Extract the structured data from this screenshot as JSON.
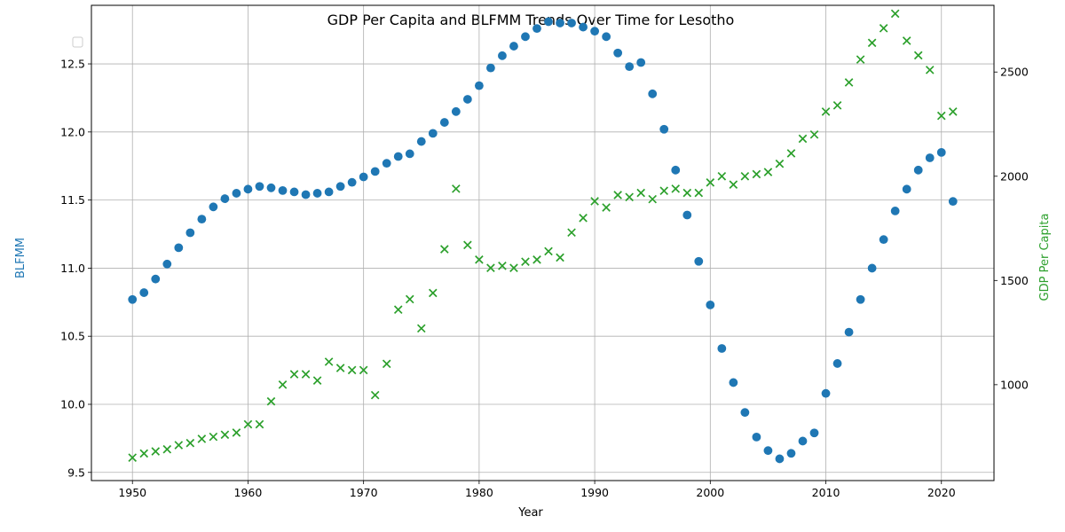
{
  "chart_data": {
    "type": "scatter",
    "title": "GDP Per Capita and BLFMM Trends Over Time for Lesotho",
    "xlabel": "Year",
    "ylabel_left": "BLFMM",
    "ylabel_right": "GDP Per Capita",
    "xlim": [
      1946.45,
      2024.55
    ],
    "ylim_left": [
      9.44,
      12.93
    ],
    "ylim_right": [
      540,
      2820
    ],
    "x_ticks": [
      1950,
      1960,
      1970,
      1980,
      1990,
      2000,
      2010,
      2020
    ],
    "y_ticks_left": [
      9.5,
      10.0,
      10.5,
      11.0,
      11.5,
      12.0,
      12.5
    ],
    "y_ticks_left_labels": [
      "9.5",
      "10.0",
      "10.5",
      "11.0",
      "11.5",
      "12.0",
      "12.5"
    ],
    "y_ticks_right": [
      1000,
      1500,
      2000,
      2500
    ],
    "grid": true,
    "legend": "top-left (empty)",
    "colors": {
      "left_axis": "#1f77b4",
      "right_axis": "#2ca02c"
    },
    "x": [
      1950,
      1951,
      1952,
      1953,
      1954,
      1955,
      1956,
      1957,
      1958,
      1959,
      1960,
      1961,
      1962,
      1963,
      1964,
      1965,
      1966,
      1967,
      1968,
      1969,
      1970,
      1971,
      1972,
      1973,
      1974,
      1975,
      1976,
      1977,
      1978,
      1979,
      1980,
      1981,
      1982,
      1983,
      1984,
      1985,
      1986,
      1987,
      1988,
      1989,
      1990,
      1991,
      1992,
      1993,
      1994,
      1995,
      1996,
      1997,
      1998,
      1999,
      2000,
      2001,
      2002,
      2003,
      2004,
      2005,
      2006,
      2007,
      2008,
      2009,
      2010,
      2011,
      2012,
      2013,
      2014,
      2015,
      2016,
      2017,
      2018,
      2019,
      2020,
      2021
    ],
    "series": [
      {
        "axis": "left",
        "marker": "circle",
        "color": "#1f77b4",
        "values": [
          10.77,
          10.82,
          10.92,
          11.03,
          11.15,
          11.26,
          11.36,
          11.45,
          11.51,
          11.55,
          11.58,
          11.6,
          11.59,
          11.57,
          11.56,
          11.54,
          11.55,
          11.56,
          11.6,
          11.63,
          11.67,
          11.71,
          11.77,
          11.82,
          11.84,
          11.93,
          11.99,
          12.07,
          12.15,
          12.24,
          12.34,
          12.47,
          12.56,
          12.63,
          12.7,
          12.76,
          12.81,
          12.8,
          12.8,
          12.77,
          12.74,
          12.7,
          12.58,
          12.48,
          12.51,
          12.28,
          12.02,
          11.72,
          11.39,
          11.05,
          10.73,
          10.41,
          10.16,
          9.94,
          9.76,
          9.66,
          9.6,
          9.64,
          9.73,
          9.79,
          10.08,
          10.3,
          10.53,
          10.77,
          11.0,
          11.21,
          11.42,
          11.58,
          11.72,
          11.81,
          11.85,
          11.49
        ]
      },
      {
        "axis": "right",
        "marker": "x",
        "color": "#2ca02c",
        "values": [
          650,
          670,
          680,
          690,
          710,
          720,
          740,
          750,
          760,
          770,
          810,
          810,
          920,
          1000,
          1050,
          1050,
          1020,
          1110,
          1080,
          1070,
          1070,
          950,
          1100,
          1360,
          1410,
          1270,
          1440,
          1650,
          1940,
          1670,
          1600,
          1560,
          1570,
          1560,
          1590,
          1600,
          1640,
          1610,
          1730,
          1800,
          1880,
          1850,
          1910,
          1900,
          1920,
          1890,
          1930,
          1940,
          1920,
          1920,
          1970,
          2000,
          1960,
          2000,
          2010,
          2020,
          2060,
          2110,
          2180,
          2200,
          2310,
          2340,
          2450,
          2560,
          2640,
          2710,
          2780,
          2650,
          2580,
          2510,
          2290,
          2310
        ]
      }
    ]
  }
}
